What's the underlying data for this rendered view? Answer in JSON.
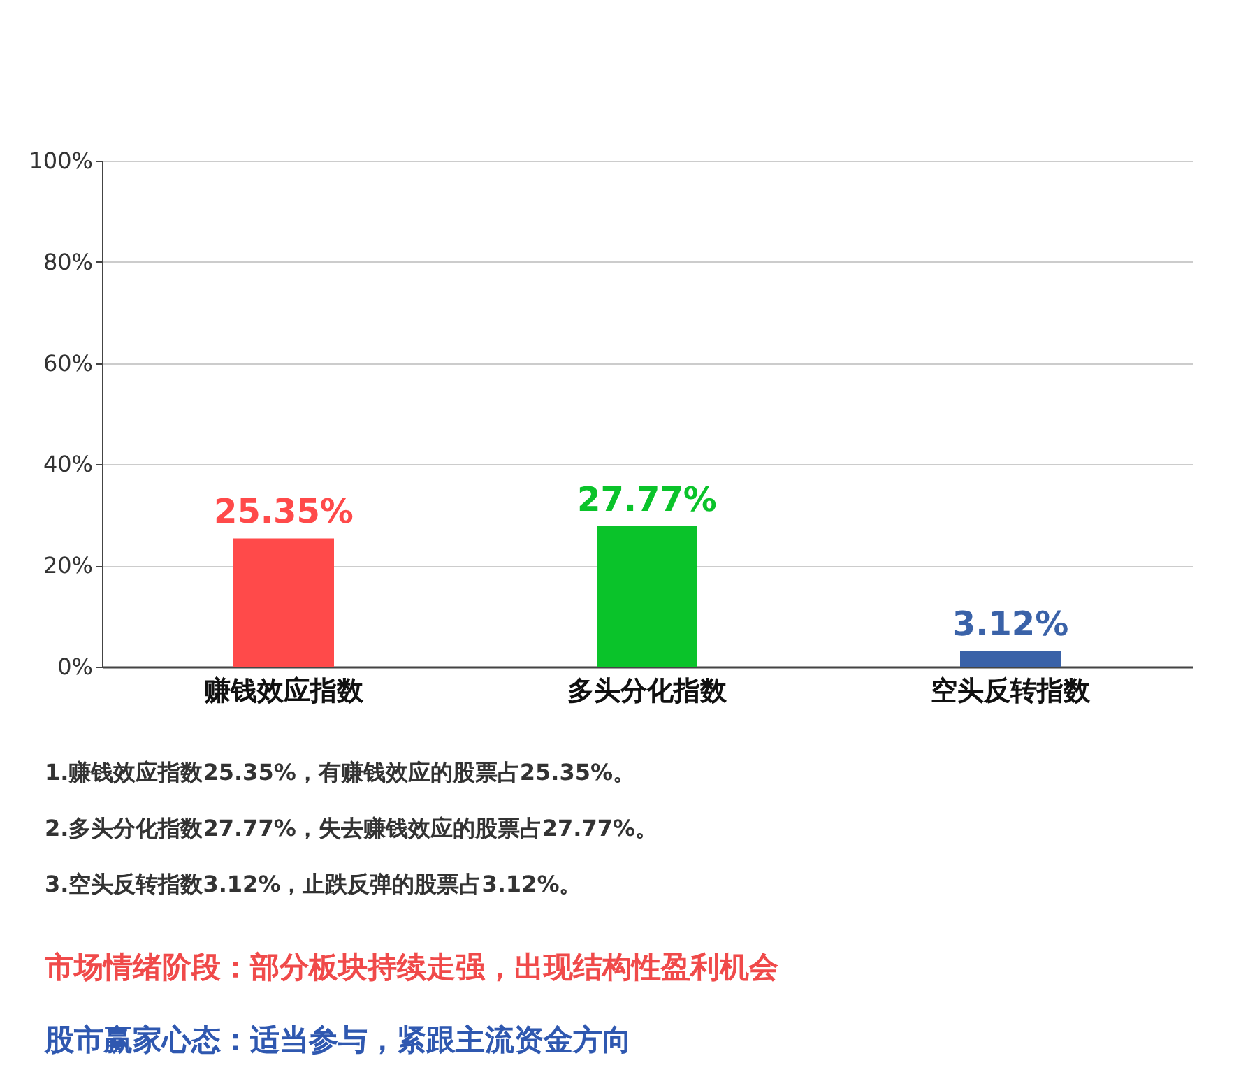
{
  "chart_data": {
    "type": "bar",
    "categories": [
      "赚钱效应指数",
      "多头分化指数",
      "空头反转指数"
    ],
    "values": [
      25.35,
      27.77,
      3.12
    ],
    "colors": [
      "#ff4a4a",
      "#0ac32a",
      "#3a62a8"
    ],
    "value_labels": [
      "25.35%",
      "27.77%",
      "3.12%"
    ],
    "ylim": [
      0,
      100
    ],
    "yticks": [
      {
        "value": 0,
        "label": "0%"
      },
      {
        "value": 20,
        "label": "20%"
      },
      {
        "value": 40,
        "label": "40%"
      },
      {
        "value": 60,
        "label": "60%"
      },
      {
        "value": 80,
        "label": "80%"
      },
      {
        "value": 100,
        "label": "100%"
      }
    ],
    "grid": "y",
    "annotations": [
      "1.赚钱效应指数25.35%，有赚钱效应的股票占25.35%。",
      "2.多头分化指数27.77%，失去赚钱效应的股票占27.77%。",
      "3.空头反转指数3.12%，止跌反弹的股票占3.12%。",
      "市场情绪阶段：部分板块持续走强，出现结构性盈利机会",
      "股市赢家心态：适当参与，紧跟主流资金方向"
    ]
  }
}
